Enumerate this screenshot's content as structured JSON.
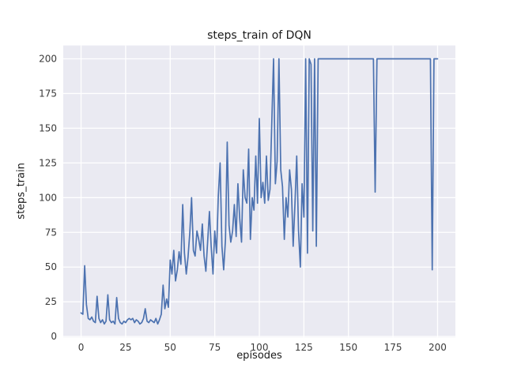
{
  "figure": {
    "title": "steps_train of DQN",
    "xlabel": "episodes",
    "ylabel": "steps_train"
  },
  "chart_data": {
    "type": "line",
    "title": "steps_train of DQN",
    "xlabel": "episodes",
    "ylabel": "steps_train",
    "xlim": [
      -10,
      210
    ],
    "ylim": [
      -0.6,
      209.6
    ],
    "xticks": [
      0,
      25,
      50,
      75,
      100,
      125,
      150,
      175,
      200
    ],
    "yticks": [
      0,
      25,
      50,
      75,
      100,
      125,
      150,
      175,
      200
    ],
    "grid": true,
    "legend": "none",
    "plot_bg": "#eaeaf2",
    "grid_color": "#ffffff",
    "line_color": "#4c72b0",
    "tick_label_color": "#3a3a3a",
    "series": [
      {
        "name": "steps_train",
        "x_start": 0,
        "x_step": 1,
        "values": [
          17,
          16,
          51,
          23,
          13,
          12,
          14,
          11,
          10,
          29,
          13,
          10,
          12,
          9,
          11,
          30,
          12,
          10,
          11,
          9,
          28,
          13,
          10,
          9,
          11,
          10,
          12,
          13,
          12,
          13,
          10,
          12,
          11,
          9,
          10,
          13,
          20,
          11,
          10,
          12,
          11,
          10,
          13,
          9,
          12,
          16,
          37,
          20,
          27,
          21,
          55,
          45,
          62,
          40,
          48,
          61,
          52,
          95,
          60,
          45,
          57,
          75,
          100,
          62,
          58,
          76,
          70,
          62,
          81,
          58,
          47,
          68,
          90,
          65,
          45,
          76,
          60,
          101,
          125,
          65,
          48,
          70,
          140,
          80,
          68,
          76,
          95,
          72,
          110,
          85,
          68,
          120,
          100,
          96,
          135,
          70,
          100,
          91,
          130,
          96,
          157,
          100,
          111,
          96,
          130,
          98,
          106,
          155,
          200,
          110,
          126,
          200,
          120,
          108,
          70,
          100,
          86,
          120,
          106,
          65,
          96,
          130,
          76,
          50,
          110,
          86,
          200,
          60,
          200,
          196,
          76,
          200,
          65,
          200,
          200,
          200,
          200,
          200,
          200,
          200,
          200,
          200,
          200,
          200,
          200,
          200,
          200,
          200,
          200,
          200,
          200,
          200,
          200,
          200,
          200,
          200,
          200,
          200,
          200,
          200,
          200,
          200,
          200,
          200,
          200,
          104,
          200,
          200,
          200,
          200,
          200,
          200,
          200,
          200,
          200,
          200,
          200,
          200,
          200,
          200,
          200,
          200,
          200,
          200,
          200,
          200,
          200,
          200,
          200,
          200,
          200,
          200,
          200,
          200,
          200,
          200,
          200,
          48,
          200,
          200,
          200
        ]
      }
    ]
  }
}
